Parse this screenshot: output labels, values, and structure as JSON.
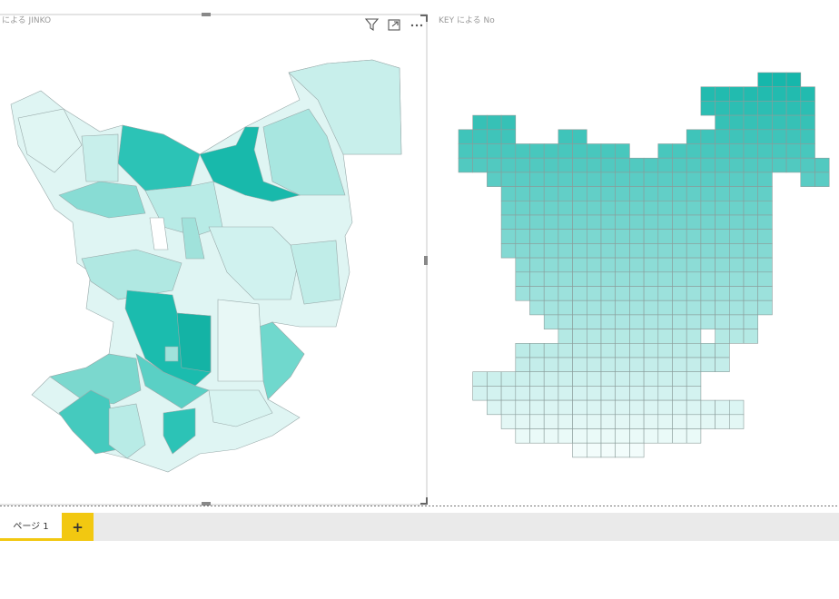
{
  "visuals": [
    {
      "title": "KEY による JINKO"
    },
    {
      "title": "KEY による No"
    }
  ],
  "tabs": [
    {
      "label": "ページ 1"
    }
  ],
  "add_tab": "+"
}
